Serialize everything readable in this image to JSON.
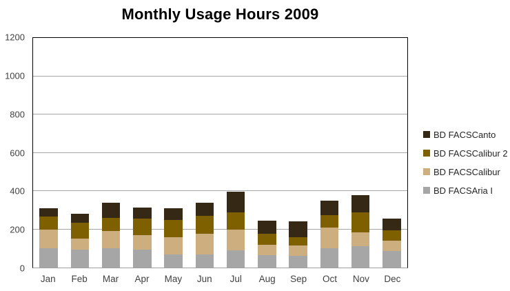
{
  "chart_data": {
    "type": "bar",
    "stacked": true,
    "title": "Monthly Usage Hours 2009",
    "categories": [
      "Jan",
      "Feb",
      "Mar",
      "Apr",
      "May",
      "Jun",
      "Jul",
      "Aug",
      "Sep",
      "Oct",
      "Nov",
      "Dec"
    ],
    "series": [
      {
        "name": "BD FACSAria I",
        "color": "#a6a6a6",
        "values": [
          100,
          95,
          100,
          95,
          70,
          70,
          90,
          65,
          60,
          100,
          110,
          85
        ]
      },
      {
        "name": "BD FACSCalibur",
        "color": "#cdae7f",
        "values": [
          100,
          55,
          90,
          75,
          90,
          105,
          110,
          55,
          55,
          110,
          75,
          55
        ]
      },
      {
        "name": "BD FACSCalibur 2",
        "color": "#7f6000",
        "values": [
          65,
          85,
          70,
          85,
          90,
          95,
          90,
          55,
          45,
          65,
          105,
          55
        ]
      },
      {
        "name": "BD FACSCanto",
        "color": "#352915",
        "values": [
          45,
          45,
          80,
          60,
          60,
          70,
          105,
          70,
          80,
          75,
          90,
          60
        ]
      }
    ],
    "stack_order_note": "series listed bottom-to-top of each bar",
    "totals": [
      310,
      280,
      340,
      315,
      310,
      340,
      395,
      245,
      240,
      350,
      380,
      255
    ],
    "legend": [
      "BD FACSCanto",
      "BD FACSCalibur 2",
      "BD FACSCalibur",
      "BD FACSAria I"
    ],
    "legend_position": "right",
    "xlabel": "",
    "ylabel": "",
    "ylim": [
      0,
      1200
    ],
    "yticks": [
      0,
      200,
      400,
      600,
      800,
      1000,
      1200
    ],
    "grid": true,
    "grid_color": "#a6a6a6",
    "plot_border_color": "#000000",
    "bottom_axis_color": "#9e9e9e",
    "tick_text_color": "#404040",
    "title_color": "#000000"
  }
}
